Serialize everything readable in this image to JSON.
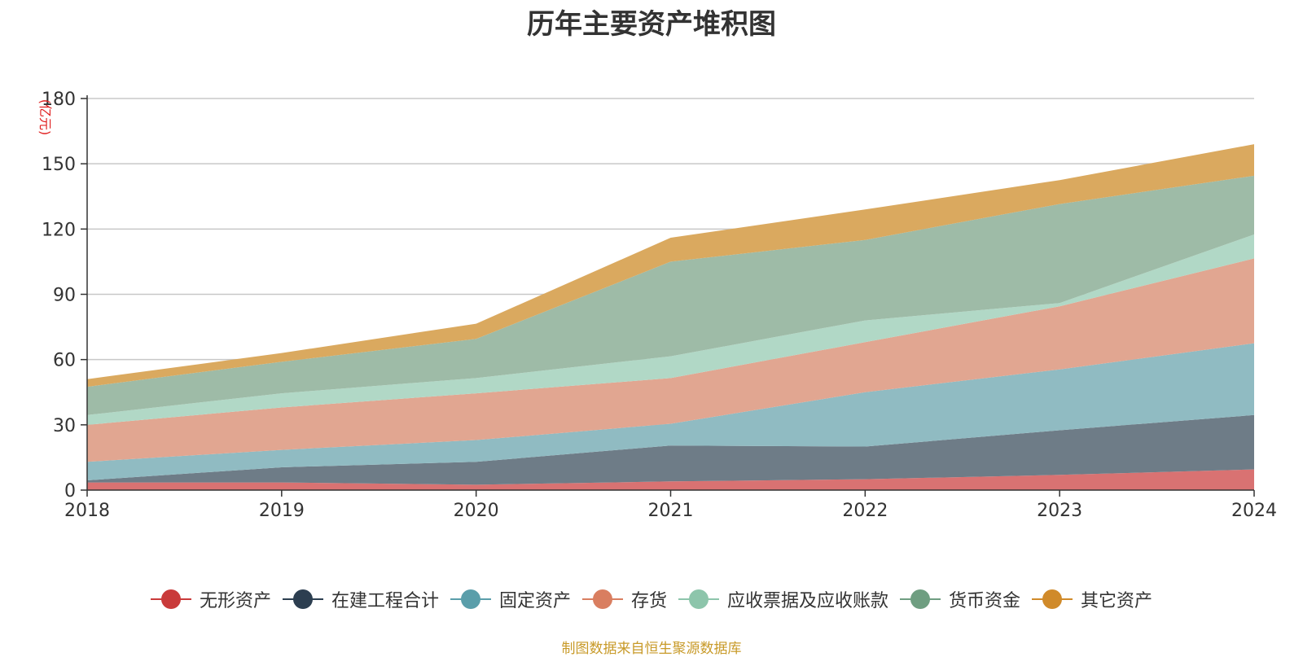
{
  "chart_data": {
    "type": "area",
    "stacked": true,
    "title": "历年主要资产堆积图",
    "unit_label": "(亿元)",
    "x": [
      "2018",
      "2019",
      "2020",
      "2021",
      "2022",
      "2023",
      "2024"
    ],
    "ylim": [
      0,
      180
    ],
    "yticks": [
      0,
      30,
      60,
      90,
      120,
      150,
      180
    ],
    "grid": true,
    "legend_position": "bottom",
    "series": [
      {
        "name": "无形资产",
        "values": [
          3.5,
          3.5,
          2.5,
          4,
          5,
          7,
          9.5
        ],
        "fill": "#d97272",
        "color": "#c93a3a"
      },
      {
        "name": "在建工程合计",
        "values": [
          1,
          7,
          10.5,
          16.5,
          15,
          20.5,
          25
        ],
        "fill": "#6e7c87",
        "color": "#2c3e50"
      },
      {
        "name": "固定资产",
        "values": [
          8.5,
          8,
          10,
          10,
          25,
          28,
          33
        ],
        "fill": "#90bbc2",
        "color": "#5a9eaa"
      },
      {
        "name": "存货",
        "values": [
          17,
          19.5,
          21.5,
          21,
          23,
          29,
          39
        ],
        "fill": "#e1a691",
        "color": "#d97e60"
      },
      {
        "name": "应收票据及应收账款",
        "values": [
          4.5,
          6.5,
          7,
          10,
          10,
          1.5,
          11
        ],
        "fill": "#b1d8c6",
        "color": "#8dc5ab"
      },
      {
        "name": "货币资金",
        "values": [
          13,
          14.5,
          18,
          43.5,
          37,
          45.5,
          27
        ],
        "fill": "#9ebba7",
        "color": "#6f9e81"
      },
      {
        "name": "其它资产",
        "values": [
          3.5,
          4,
          7,
          11,
          14,
          11,
          14.5
        ],
        "fill": "#daa95f",
        "color": "#d08a2a"
      }
    ]
  },
  "footer": {
    "source": "制图数据来自恒生聚源数据库"
  }
}
